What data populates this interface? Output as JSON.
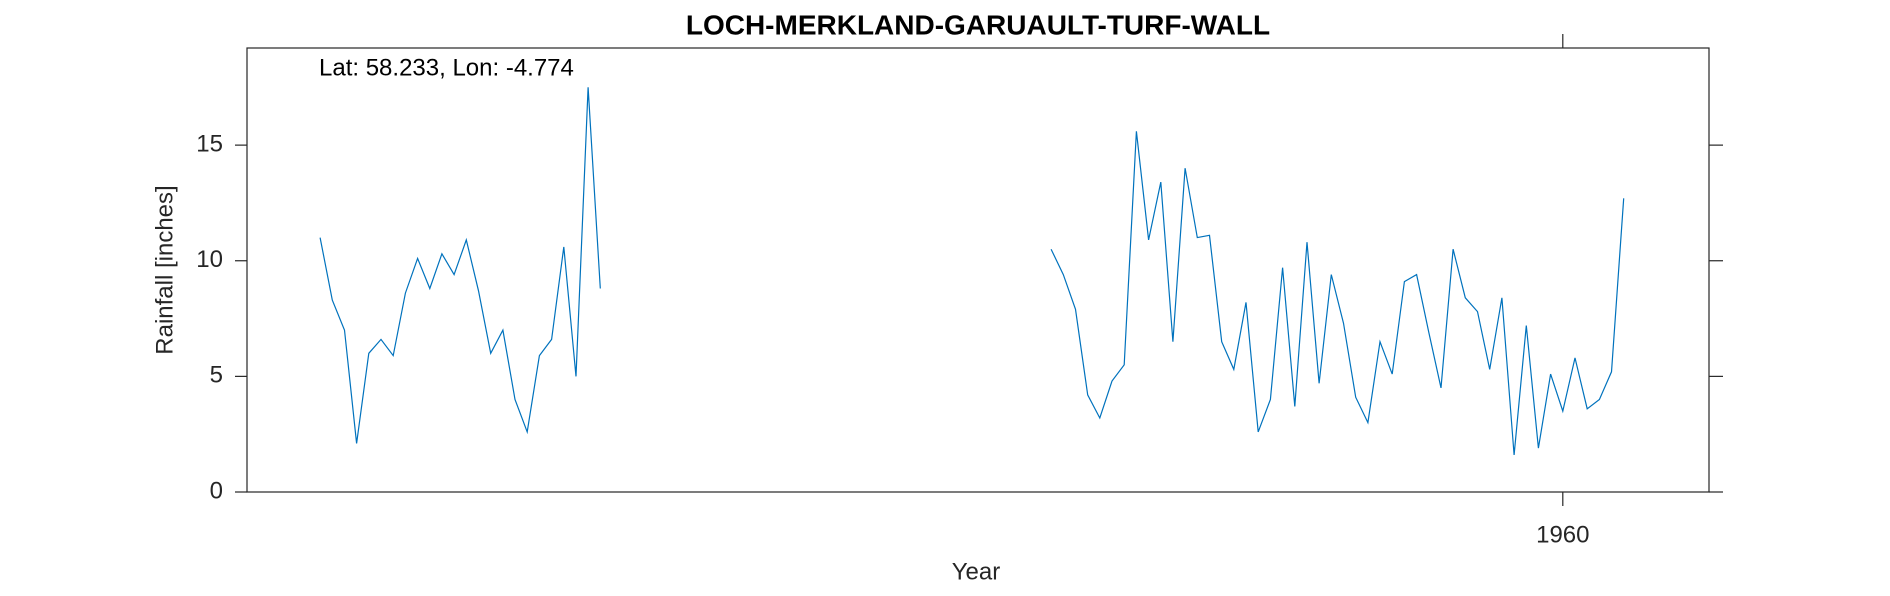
{
  "chart_data": {
    "type": "line",
    "title": "LOCH-MERKLAND-GARUAULT-TURF-WALL",
    "annotation": "Lat: 58.233, Lon: -4.774",
    "x_label": "Year",
    "y_label": "Rainfall [inches]",
    "x": [
      1858,
      1859,
      1860,
      1861,
      1862,
      1863,
      1864,
      1865,
      1866,
      1867,
      1868,
      1869,
      1870,
      1871,
      1872,
      1873,
      1874,
      1875,
      1876,
      1877,
      1878,
      1879,
      1880,
      1881,
      1882,
      1883,
      1884,
      1885,
      1886,
      1887,
      1888,
      1889,
      1890,
      1891,
      1892,
      1893,
      1894,
      1895,
      1896,
      1897,
      1898,
      1899,
      1900,
      1901,
      1902,
      1903,
      1904,
      1905,
      1906,
      1907,
      1908,
      1909,
      1910,
      1911,
      1912,
      1913,
      1914,
      1915,
      1916,
      1917,
      1918,
      1919,
      1920,
      1921,
      1922,
      1923,
      1924,
      1925,
      1926,
      1927,
      1928,
      1929,
      1930,
      1931,
      1932,
      1933,
      1934,
      1935,
      1936,
      1937,
      1938,
      1939,
      1940,
      1941,
      1942,
      1943,
      1944,
      1945,
      1946,
      1947,
      1948,
      1949,
      1950,
      1951,
      1952,
      1953,
      1954,
      1955,
      1956,
      1957,
      1958,
      1959,
      1960,
      1961,
      1962,
      1963,
      1964,
      1965
    ],
    "series": [
      {
        "color": "#0072bd",
        "values": [
          11.0,
          8.3,
          7.0,
          2.1,
          6.0,
          6.6,
          5.9,
          8.6,
          10.1,
          8.8,
          10.3,
          9.4,
          10.9,
          8.7,
          6.0,
          7.0,
          4.0,
          2.6,
          5.9,
          6.6,
          10.6,
          5.0,
          17.5,
          8.8,
          null,
          null,
          null,
          null,
          null,
          null,
          null,
          null,
          null,
          null,
          null,
          null,
          null,
          null,
          null,
          null,
          null,
          null,
          null,
          null,
          null,
          null,
          null,
          null,
          null,
          null,
          null,
          null,
          null,
          null,
          null,
          null,
          null,
          null,
          null,
          null,
          10.5,
          9.4,
          7.9,
          4.2,
          3.2,
          4.8,
          5.5,
          15.6,
          10.9,
          13.4,
          6.5,
          14.0,
          11.0,
          11.1,
          6.5,
          5.3,
          8.2,
          2.6,
          4.0,
          9.7,
          3.7,
          10.8,
          4.7,
          9.4,
          7.3,
          4.1,
          3.0,
          6.5,
          5.1,
          9.1,
          9.4,
          6.9,
          4.5,
          10.5,
          8.4,
          7.8,
          5.3,
          8.4,
          1.6,
          7.2,
          1.9,
          5.1,
          3.5,
          5.8,
          3.6,
          4.0,
          5.2,
          12.7
        ]
      }
    ],
    "xlim": [
      1852,
      1972
    ],
    "xticks": [
      1960
    ],
    "ylim": [
      0,
      19.2
    ],
    "yticks": [
      0,
      5,
      10,
      15
    ]
  }
}
